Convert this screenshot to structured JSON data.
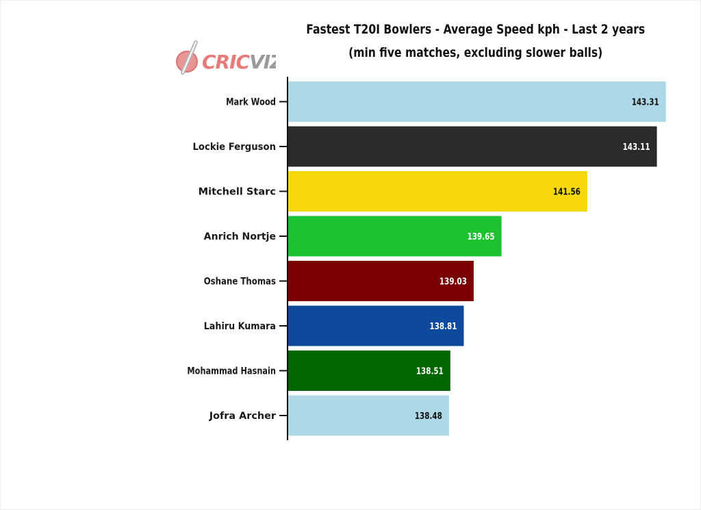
{
  "chart_data": {
    "type": "bar",
    "orientation": "horizontal",
    "title": "Fastest T20I Bowlers - Average Speed kph - Last 2 years",
    "subtitle": "(min five matches, excluding slower balls)",
    "xlabel": "",
    "ylabel": "",
    "categories": [
      "Mark Wood",
      "Lockie Ferguson",
      "Mitchell Starc",
      "Anrich Nortje",
      "Oshane Thomas",
      "Lahiru Kumara",
      "Mohammad Hasnain",
      "Jofra Archer"
    ],
    "values": [
      143.31,
      143.11,
      141.56,
      139.65,
      139.03,
      138.81,
      138.51,
      138.48
    ],
    "value_labels": [
      "143.31",
      "143.11",
      "141.56",
      "139.65",
      "139.03",
      "138.81",
      "138.51",
      "138.48"
    ],
    "colors": [
      "#add8e6",
      "#2b2a2b",
      "#f5d90a",
      "#1cc22f",
      "#7a0000",
      "#0d4a9e",
      "#006400",
      "#add8e6"
    ],
    "label_colors": [
      "#111111",
      "#ffffff",
      "#111111",
      "#ffffff",
      "#ffffff",
      "#ffffff",
      "#ffffff",
      "#111111"
    ],
    "xlim": [
      134.9,
      143.4
    ],
    "grid": false,
    "legend": "none"
  },
  "logo": {
    "text_a": "CRIC",
    "text_b": "VIZ"
  }
}
